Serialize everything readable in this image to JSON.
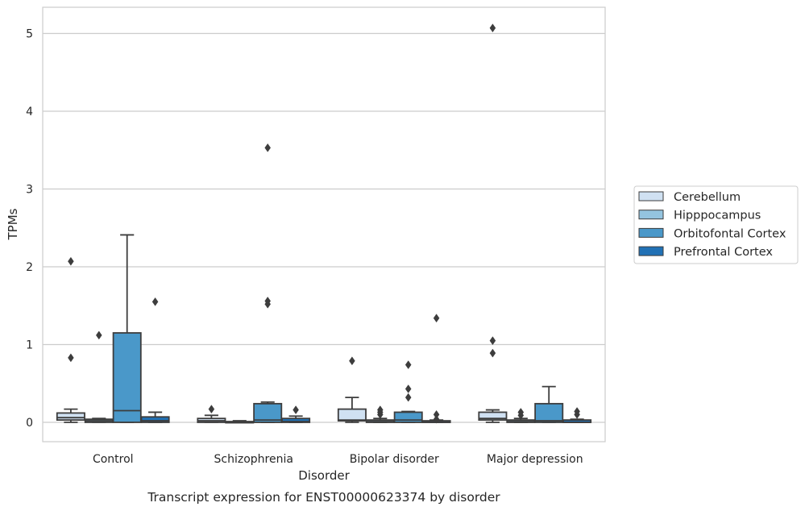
{
  "chart_data": {
    "type": "boxplot",
    "caption": "Transcript expression for ENST00000623374 by disorder",
    "xlabel": "Disorder",
    "ylabel": "TPMs",
    "ylim": [
      -0.25,
      5.33
    ],
    "yticks": [
      0,
      1,
      2,
      3,
      4,
      5
    ],
    "grid": "horizontal",
    "legend_position": "right",
    "categories": [
      "Control",
      "Schizophrenia",
      "Bipolar disorder",
      "Major depression"
    ],
    "series": [
      {
        "name": "Cerebellum",
        "color": "#d0e1f2",
        "boxes": [
          {
            "min": 0.0,
            "q1": 0.03,
            "median": 0.06,
            "q3": 0.12,
            "max": 0.17,
            "outliers": [
              0.83,
              2.07
            ]
          },
          {
            "min": 0.0,
            "q1": 0.0,
            "median": 0.02,
            "q3": 0.05,
            "max": 0.09,
            "outliers": [
              0.17
            ]
          },
          {
            "min": 0.0,
            "q1": 0.02,
            "median": 0.03,
            "q3": 0.17,
            "max": 0.32,
            "outliers": [
              0.79
            ]
          },
          {
            "min": 0.0,
            "q1": 0.03,
            "median": 0.05,
            "q3": 0.13,
            "max": 0.16,
            "outliers": [
              0.89,
              1.05,
              5.07
            ]
          }
        ]
      },
      {
        "name": "Hipppocampus",
        "color": "#94c4df",
        "boxes": [
          {
            "min": 0.0,
            "q1": 0.0,
            "median": 0.02,
            "q3": 0.04,
            "max": 0.05,
            "outliers": [
              1.12
            ]
          },
          {
            "min": 0.0,
            "q1": 0.0,
            "median": 0.0,
            "q3": 0.01,
            "max": 0.02,
            "outliers": []
          },
          {
            "min": 0.0,
            "q1": 0.0,
            "median": 0.01,
            "q3": 0.03,
            "max": 0.05,
            "outliers": [
              0.1,
              0.13,
              0.16
            ]
          },
          {
            "min": 0.0,
            "q1": 0.0,
            "median": 0.01,
            "q3": 0.03,
            "max": 0.05,
            "outliers": [
              0.09,
              0.13
            ]
          }
        ]
      },
      {
        "name": "Orbitofontal Cortex",
        "color": "#4a98c9",
        "boxes": [
          {
            "min": 0.0,
            "q1": 0.0,
            "median": 0.15,
            "q3": 1.15,
            "max": 2.41,
            "outliers": []
          },
          {
            "min": 0.0,
            "q1": 0.0,
            "median": 0.03,
            "q3": 0.24,
            "max": 0.26,
            "outliers": [
              1.52,
              1.56,
              3.53
            ]
          },
          {
            "min": 0.0,
            "q1": 0.0,
            "median": 0.03,
            "q3": 0.13,
            "max": 0.14,
            "outliers": [
              0.32,
              0.43,
              0.74
            ]
          },
          {
            "min": 0.0,
            "q1": 0.0,
            "median": 0.02,
            "q3": 0.24,
            "max": 0.46,
            "outliers": []
          }
        ]
      },
      {
        "name": "Prefrontal Cortex",
        "color": "#2171b5",
        "boxes": [
          {
            "min": 0.0,
            "q1": 0.0,
            "median": 0.02,
            "q3": 0.07,
            "max": 0.13,
            "outliers": [
              1.55
            ]
          },
          {
            "min": 0.0,
            "q1": 0.0,
            "median": 0.01,
            "q3": 0.05,
            "max": 0.08,
            "outliers": [
              0.16
            ]
          },
          {
            "min": 0.0,
            "q1": 0.0,
            "median": 0.0,
            "q3": 0.02,
            "max": 0.03,
            "outliers": [
              0.04,
              0.1,
              1.34
            ]
          },
          {
            "min": 0.0,
            "q1": 0.0,
            "median": 0.0,
            "q3": 0.03,
            "max": 0.04,
            "outliers": [
              0.1,
              0.14
            ]
          }
        ]
      }
    ]
  }
}
